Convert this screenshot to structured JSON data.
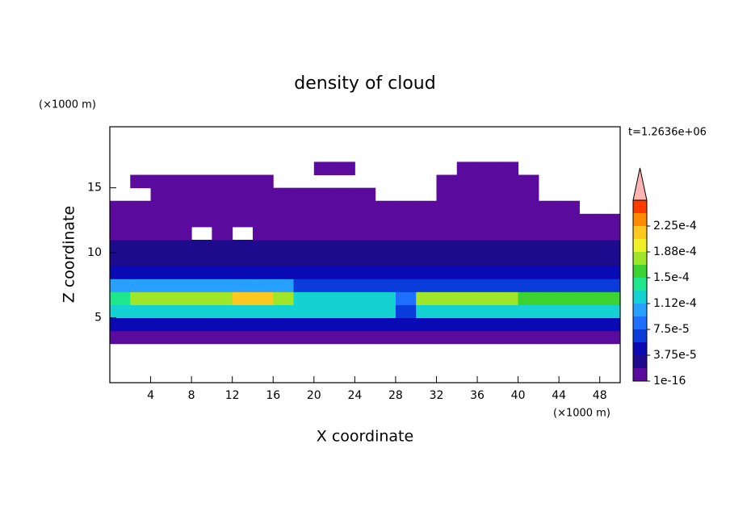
{
  "chart_data": {
    "type": "contour",
    "title": "density of cloud",
    "x_label": "X coordinate",
    "y_label": "Z coordinate",
    "x_unit": "(×1000 m)",
    "y_unit": "(×1000 m)",
    "time_label": "t=1.2636e+06",
    "xlim": [
      0,
      50
    ],
    "ylim": [
      0,
      19.7
    ],
    "xticks": [
      4,
      8,
      12,
      16,
      20,
      24,
      28,
      32,
      36,
      40,
      44,
      48
    ],
    "yticks": [
      5,
      10,
      15
    ],
    "x_edges": [
      0,
      2,
      4,
      6,
      8,
      10,
      12,
      14,
      16,
      18,
      20,
      22,
      24,
      26,
      28,
      30,
      32,
      34,
      36,
      38,
      40,
      42,
      44,
      46,
      48,
      50
    ],
    "z_edges": [
      3,
      4,
      5,
      6,
      7,
      8,
      9,
      10,
      11,
      12,
      13,
      14,
      15,
      16,
      17
    ],
    "values": [
      [
        1e-05,
        1e-05,
        1e-05,
        1e-05,
        1e-05,
        1e-05,
        1e-05,
        1e-05,
        1e-05,
        1e-05,
        1e-05,
        1e-05,
        1e-05,
        1e-05,
        1e-05,
        1e-05,
        1e-05,
        1e-05,
        1e-05,
        1e-05,
        1e-05,
        1e-05,
        1e-05,
        1e-05,
        1e-05
      ],
      [
        5e-05,
        5e-05,
        5e-05,
        5e-05,
        5e-05,
        5e-05,
        5e-05,
        5e-05,
        5e-05,
        5e-05,
        5e-05,
        5e-05,
        5e-05,
        5e-05,
        4e-05,
        5e-05,
        5e-05,
        5e-05,
        5e-05,
        5e-05,
        5e-05,
        5e-05,
        5e-05,
        5e-05,
        5e-05
      ],
      [
        0.00013,
        0.00013,
        0.00013,
        0.00013,
        0.00013,
        0.00013,
        0.00013,
        0.00013,
        0.00013,
        0.00012,
        0.00012,
        0.00012,
        0.00012,
        0.00012,
        7e-05,
        0.00013,
        0.00013,
        0.00013,
        0.00013,
        0.00013,
        0.00013,
        0.00013,
        0.00013,
        0.00013,
        0.00013
      ],
      [
        0.00014,
        0.00018,
        0.00018,
        0.00018,
        0.00018,
        0.00018,
        0.00021,
        0.00021,
        0.00018,
        0.00013,
        0.00013,
        0.00013,
        0.00013,
        0.00013,
        8e-05,
        0.00017,
        0.00017,
        0.00017,
        0.00017,
        0.00017,
        0.00015,
        0.00015,
        0.00015,
        0.00015,
        0.00015
      ],
      [
        0.0001,
        0.0001,
        0.0001,
        0.0001,
        0.0001,
        0.0001,
        0.0001,
        0.0001,
        0.0001,
        7e-05,
        7e-05,
        7e-05,
        7e-05,
        7e-05,
        6e-05,
        7e-05,
        7e-05,
        7e-05,
        7e-05,
        7e-05,
        7e-05,
        7e-05,
        7e-05,
        7e-05,
        7e-05
      ],
      [
        4.5e-05,
        4.5e-05,
        4.5e-05,
        4.5e-05,
        4.5e-05,
        4.5e-05,
        4.5e-05,
        4.5e-05,
        4.5e-05,
        4.5e-05,
        4.5e-05,
        4.5e-05,
        4.5e-05,
        4.5e-05,
        4.5e-05,
        4.5e-05,
        4.5e-05,
        4.5e-05,
        4.5e-05,
        4.5e-05,
        4.5e-05,
        4.5e-05,
        4.5e-05,
        4.5e-05,
        4.5e-05
      ],
      [
        3e-05,
        3e-05,
        3e-05,
        3e-05,
        3e-05,
        3e-05,
        3e-05,
        3e-05,
        3e-05,
        3e-05,
        3e-05,
        3e-05,
        3e-05,
        3e-05,
        3e-05,
        3e-05,
        3e-05,
        3e-05,
        3e-05,
        3e-05,
        3e-05,
        3e-05,
        3e-05,
        3e-05,
        3e-05
      ],
      [
        2e-05,
        2e-05,
        2e-05,
        2e-05,
        2e-05,
        2e-05,
        2e-05,
        2e-05,
        2e-05,
        2e-05,
        2e-05,
        2e-05,
        2e-05,
        2e-05,
        2e-05,
        2e-05,
        2e-05,
        2e-05,
        2e-05,
        2e-05,
        2e-05,
        2e-05,
        2e-05,
        2e-05,
        2e-05
      ],
      [
        1e-05,
        1e-05,
        1e-05,
        1e-05,
        null,
        1e-05,
        null,
        1e-05,
        1e-05,
        1e-05,
        1e-05,
        1e-05,
        1e-05,
        1e-05,
        1e-05,
        1e-05,
        1e-05,
        1e-05,
        1e-05,
        1e-05,
        1e-05,
        1e-05,
        1e-05,
        1e-05,
        1e-05
      ],
      [
        5e-06,
        5e-06,
        5e-06,
        5e-06,
        5e-06,
        5e-06,
        5e-06,
        5e-06,
        5e-06,
        5e-06,
        5e-06,
        5e-06,
        5e-06,
        5e-06,
        5e-06,
        5e-06,
        5e-06,
        5e-06,
        5e-06,
        5e-06,
        5e-06,
        5e-06,
        5e-06,
        5e-06,
        5e-06
      ],
      [
        5e-06,
        5e-06,
        5e-06,
        5e-06,
        5e-06,
        5e-06,
        5e-06,
        5e-06,
        5e-06,
        5e-06,
        5e-06,
        5e-06,
        5e-06,
        5e-06,
        5e-06,
        5e-06,
        5e-06,
        5e-06,
        5e-06,
        5e-06,
        5e-06,
        5e-06,
        5e-06,
        null,
        null
      ],
      [
        null,
        null,
        5e-06,
        5e-06,
        5e-06,
        5e-06,
        5e-06,
        5e-06,
        5e-06,
        5e-06,
        5e-06,
        5e-06,
        5e-06,
        null,
        null,
        null,
        5e-06,
        5e-06,
        5e-06,
        5e-06,
        5e-06,
        null,
        null,
        null,
        null
      ],
      [
        null,
        5e-06,
        5e-06,
        5e-06,
        5e-06,
        5e-06,
        5e-06,
        5e-06,
        null,
        null,
        null,
        null,
        null,
        null,
        null,
        null,
        5e-06,
        5e-06,
        5e-06,
        5e-06,
        5e-06,
        null,
        null,
        null,
        null
      ],
      [
        null,
        null,
        null,
        null,
        null,
        null,
        null,
        null,
        null,
        null,
        5e-06,
        5e-06,
        null,
        null,
        null,
        null,
        null,
        5e-06,
        5e-06,
        5e-06,
        null,
        null,
        null,
        null,
        null
      ]
    ],
    "levels": [
      1e-16,
      1.875e-05,
      3.75e-05,
      5.625e-05,
      7.5e-05,
      9.375e-05,
      0.0001125,
      0.00013125,
      0.00015,
      0.00016875,
      0.0001875,
      0.00020625,
      0.000225,
      0.00024375
    ],
    "colors": [
      "#5a0a9c",
      "#1e0a8c",
      "#0a0ab4",
      "#0a3cdc",
      "#1e6eff",
      "#28a0ff",
      "#14d2d2",
      "#1ee68c",
      "#3cd232",
      "#a0e628",
      "#f0f028",
      "#ffc81e",
      "#ff8c00",
      "#ff3c00"
    ],
    "extend_color": "#ffb4b4",
    "colorbar_ticks": [
      {
        "value": 1e-16,
        "label": "1e-16"
      },
      {
        "value": 3.75e-05,
        "label": "3.75e-5"
      },
      {
        "value": 7.5e-05,
        "label": "7.5e-5"
      },
      {
        "value": 0.0001125,
        "label": "1.12e-4"
      },
      {
        "value": 0.00015,
        "label": "1.5e-4"
      },
      {
        "value": 0.0001875,
        "label": "1.88e-4"
      },
      {
        "value": 0.000225,
        "label": "2.25e-4"
      }
    ]
  }
}
